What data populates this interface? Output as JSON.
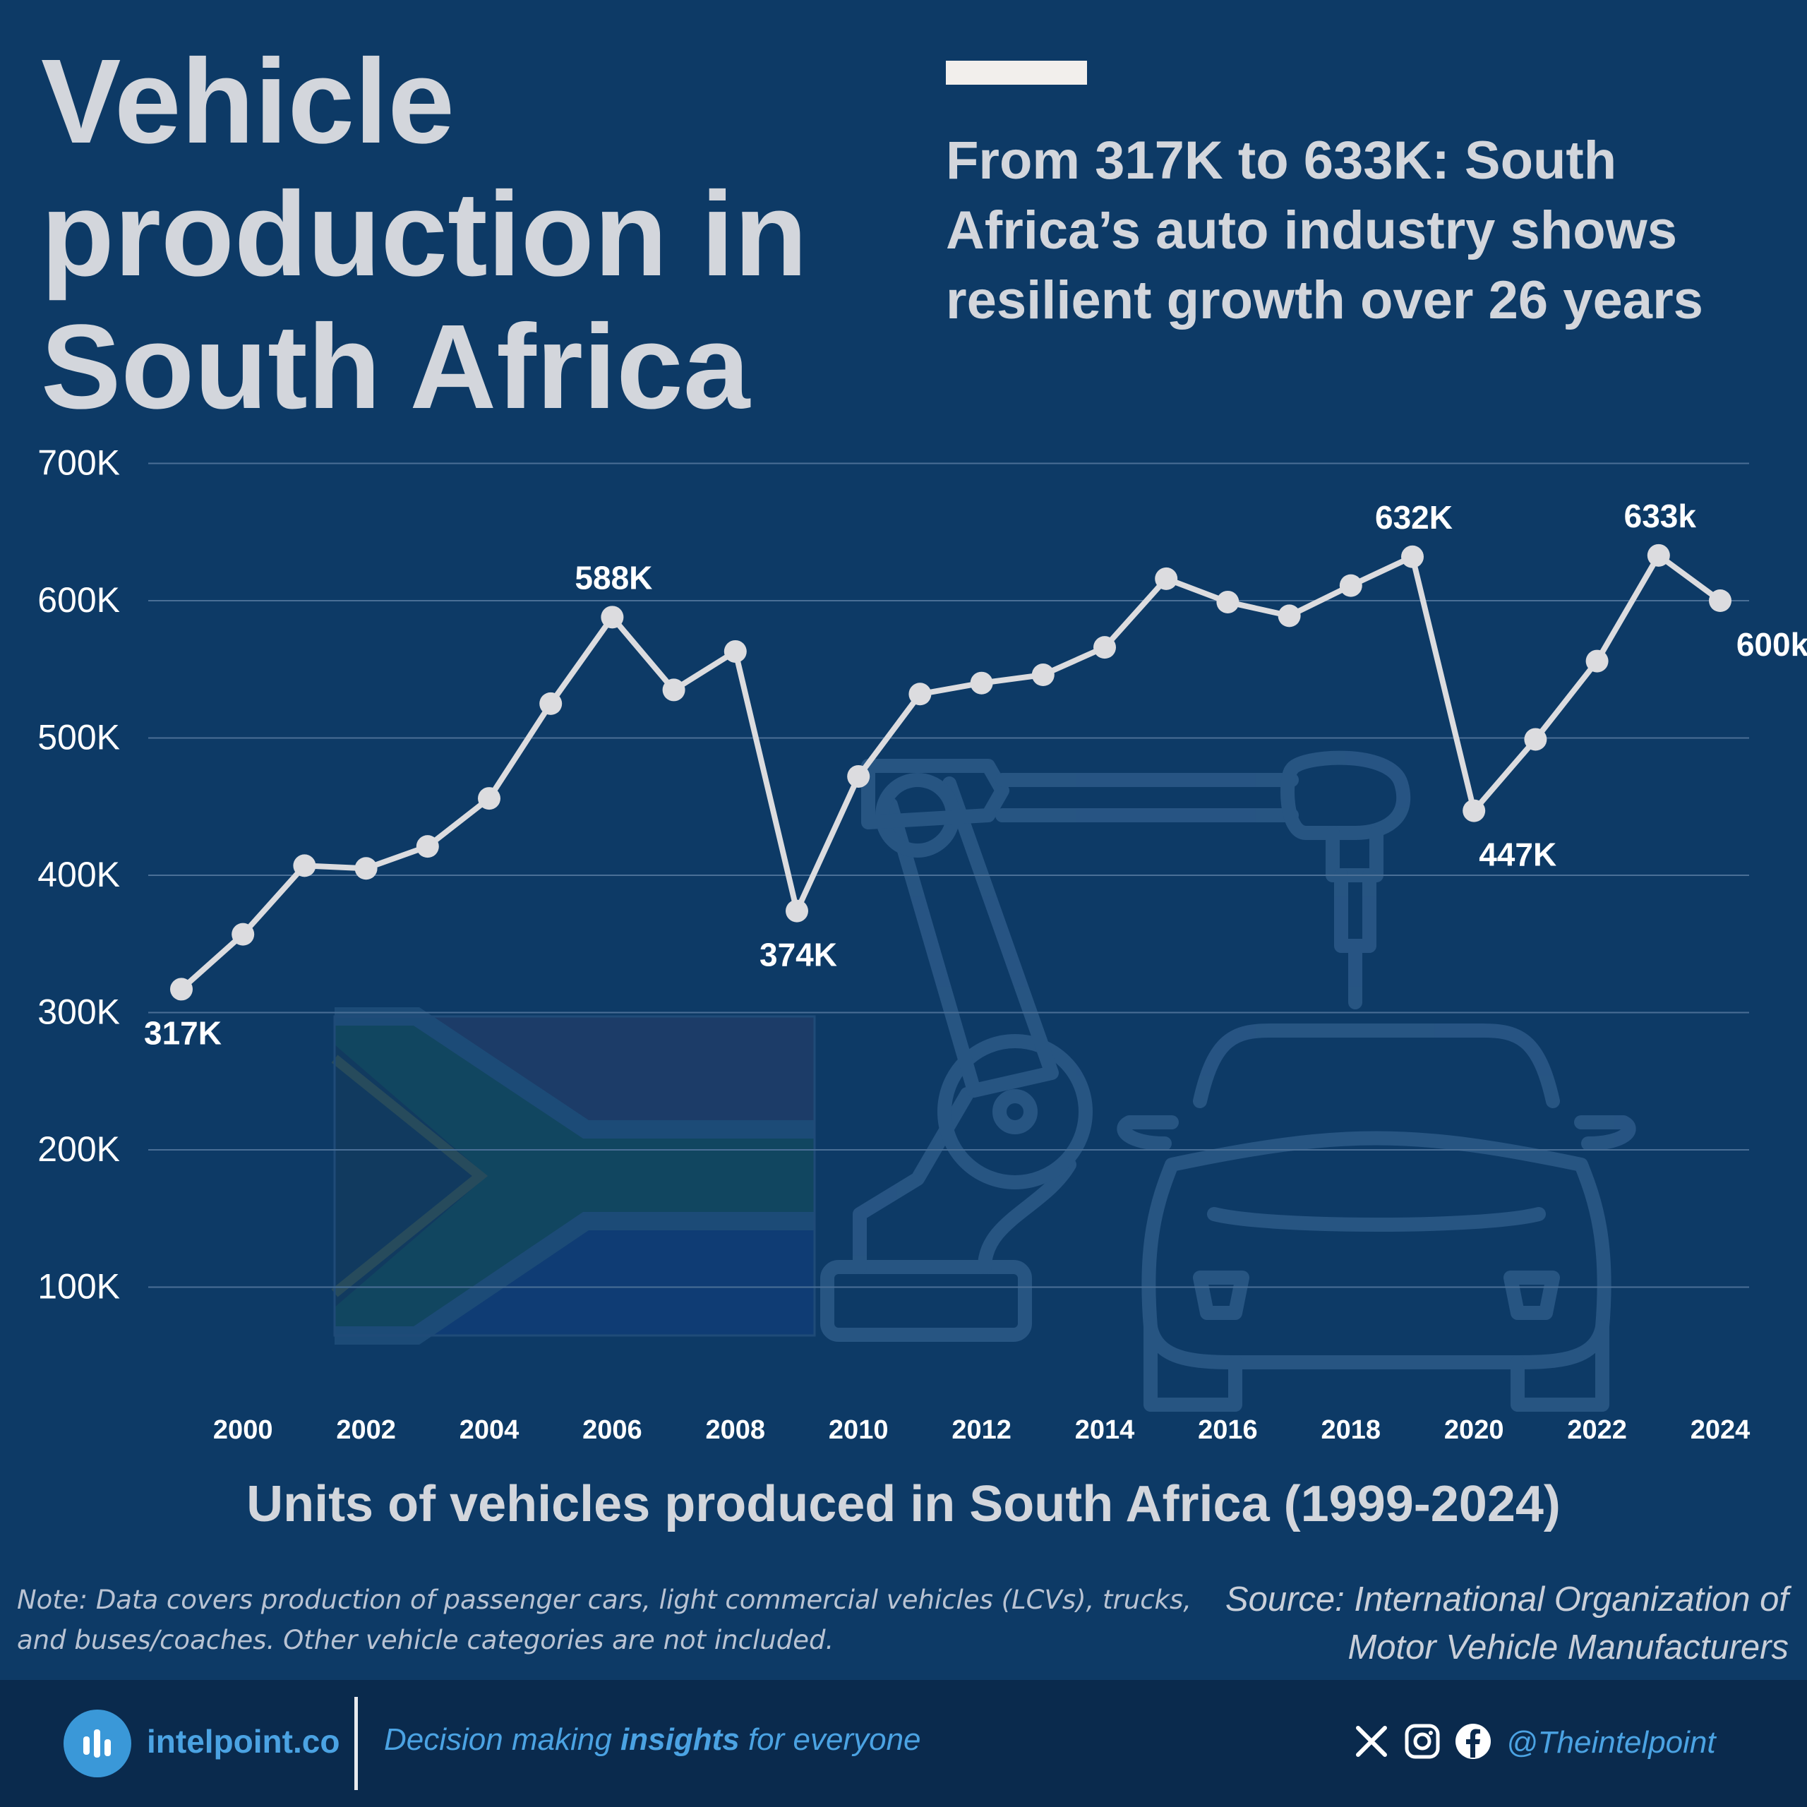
{
  "header": {
    "title": "Vehicle production in South Africa",
    "subtitle": "From 317K to 633K: South Africa’s auto industry shows resilient growth over 26 years"
  },
  "chart_data": {
    "type": "line",
    "title": "Vehicle production in South Africa",
    "subtitle": "From 317K to 633K: South Africa’s auto industry shows resilient growth over 26 years",
    "xlabel": "Units of vehicles produced in South Africa (1999-2024)",
    "ylabel": "",
    "x": [
      1999,
      2000,
      2001,
      2002,
      2003,
      2004,
      2005,
      2006,
      2007,
      2008,
      2009,
      2010,
      2011,
      2012,
      2013,
      2014,
      2015,
      2016,
      2017,
      2018,
      2019,
      2020,
      2021,
      2022,
      2023,
      2024
    ],
    "series": [
      {
        "values": [
          317,
          357,
          407,
          405,
          421,
          456,
          525,
          588,
          535,
          563,
          374,
          472,
          532,
          540,
          546,
          566,
          616,
          599,
          589,
          611,
          632,
          447,
          499,
          556,
          633,
          600
        ]
      }
    ],
    "ylim": [
      0,
      700
    ],
    "y_ticks": [
      100,
      200,
      300,
      400,
      500,
      600,
      700
    ],
    "y_tick_labels": [
      "100K",
      "200K",
      "300K",
      "400K",
      "500K",
      "600K",
      "700K"
    ],
    "x_ticks": [
      2000,
      2002,
      2004,
      2006,
      2008,
      2010,
      2012,
      2014,
      2016,
      2018,
      2020,
      2022,
      2024
    ],
    "x_tick_labels": [
      "2000",
      "2002",
      "2004",
      "2006",
      "2008",
      "2010",
      "2012",
      "2014",
      "2016",
      "2018",
      "2020",
      "2022",
      "2024"
    ],
    "annotations": [
      {
        "x": 1999,
        "text": "317K",
        "placement": "below"
      },
      {
        "x": 2006,
        "text": "588K",
        "placement": "above"
      },
      {
        "x": 2009,
        "text": "374K",
        "placement": "below"
      },
      {
        "x": 2019,
        "text": "632K",
        "placement": "above"
      },
      {
        "x": 2020,
        "text": "447K",
        "placement": "below"
      },
      {
        "x": 2023,
        "text": "633k",
        "placement": "above"
      },
      {
        "x": 2024,
        "text": "600k",
        "placement": "below"
      }
    ],
    "grid": true,
    "legend": "none",
    "colors": {
      "line": "#dcdcdf",
      "grid": "#4a6f96",
      "axis_text": "#ffffff",
      "background": "#0d3a66"
    }
  },
  "footer": {
    "note": "Note: Data covers production of passenger cars, light commercial vehicles (LCVs), trucks, and buses/coaches. Other vehicle categories are not included.",
    "source": "Source: International Organization of Motor Vehicle Manufacturers",
    "brand": "intelpoint.co",
    "tagline_pre": "Decision making ",
    "tagline_bold": "insights",
    "tagline_post": " for everyone",
    "handle": "@Theintelpoint",
    "icons": [
      "x-icon",
      "instagram-icon",
      "facebook-icon"
    ],
    "colors": {
      "brand": "#4ba3e3",
      "footer_bg": "#0a2a4d"
    }
  }
}
